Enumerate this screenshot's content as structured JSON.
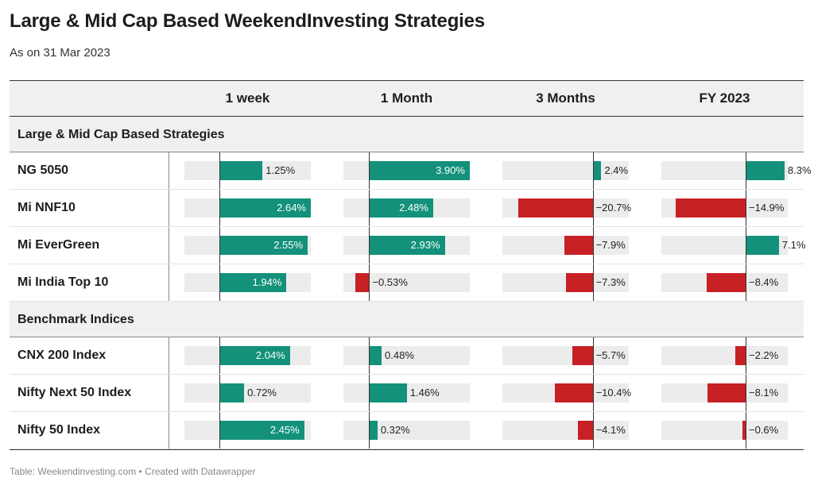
{
  "title": "Large & Mid Cap Based WeekendInvesting Strategies",
  "subtitle": "As on 31 Mar 2023",
  "footer": "Table: Weekendinvesting.com • Created with Datawrapper",
  "colors": {
    "positive": "#13917a",
    "negative": "#c72025",
    "track": "#ececec",
    "header_bg": "#f0f0f0"
  },
  "chart_data": {
    "type": "table",
    "columns": [
      "1 week",
      "1 Month",
      "3 Months",
      "FY 2023"
    ],
    "groups": [
      {
        "name": "Large & Mid Cap Based Strategies",
        "rows": [
          {
            "name": "NG 5050",
            "values": [
              1.25,
              3.9,
              2.4,
              8.3
            ],
            "labels": [
              "1.25%",
              "3.90%",
              "2.4%",
              "8.3%"
            ]
          },
          {
            "name": "Mi NNF10",
            "values": [
              2.64,
              2.48,
              -20.7,
              -14.9
            ],
            "labels": [
              "2.64%",
              "2.48%",
              "−20.7%",
              "−14.9%"
            ]
          },
          {
            "name": "Mi EverGreen",
            "values": [
              2.55,
              2.93,
              -7.9,
              7.1
            ],
            "labels": [
              "2.55%",
              "2.93%",
              "−7.9%",
              "7.1%"
            ]
          },
          {
            "name": "Mi India Top 10",
            "values": [
              1.94,
              -0.53,
              -7.3,
              -8.4
            ],
            "labels": [
              "1.94%",
              "−0.53%",
              "−7.3%",
              "−8.4%"
            ]
          }
        ]
      },
      {
        "name": "Benchmark Indices",
        "rows": [
          {
            "name": "CNX 200 Index",
            "values": [
              2.04,
              0.48,
              -5.7,
              -2.2
            ],
            "labels": [
              "2.04%",
              "0.48%",
              "−5.7%",
              "−2.2%"
            ]
          },
          {
            "name": "Nifty Next 50 Index",
            "values": [
              0.72,
              1.46,
              -10.4,
              -8.1
            ],
            "labels": [
              "0.72%",
              "1.46%",
              "−10.4%",
              "−8.1%"
            ]
          },
          {
            "name": "Nifty 50 Index",
            "values": [
              2.45,
              0.32,
              -4.1,
              -0.6
            ],
            "labels": [
              "2.45%",
              "0.32%",
              "−4.1%",
              "−0.6%"
            ]
          }
        ]
      }
    ],
    "column_ranges": [
      [
        -1.0,
        2.64
      ],
      [
        -1.0,
        3.9
      ],
      [
        -25.0,
        10.0
      ],
      [
        -18.0,
        9.0
      ]
    ]
  }
}
